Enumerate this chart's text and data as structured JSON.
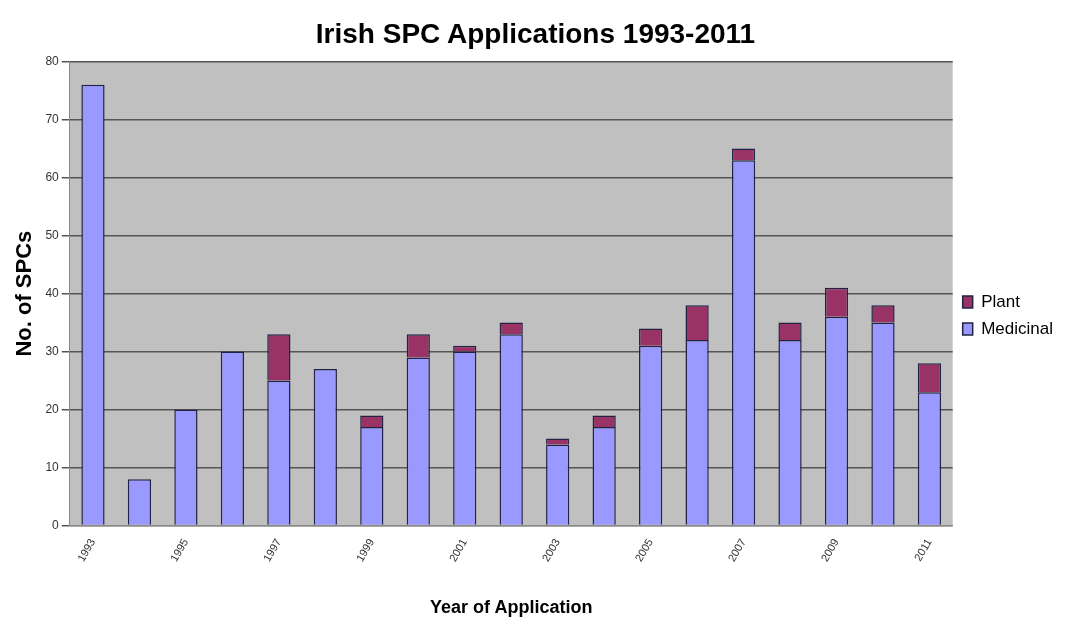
{
  "chart_data": {
    "type": "bar",
    "title": "Irish SPC Applications 1993-2011",
    "xlabel": "Year of Application",
    "ylabel": "No. of SPCs",
    "categories": [
      "1993",
      null,
      "1995",
      null,
      "1997",
      null,
      "1999",
      null,
      "2001",
      null,
      "2003",
      null,
      "2005",
      null,
      "2007",
      null,
      "2009",
      null,
      "2011"
    ],
    "stacked": true,
    "series": [
      {
        "name": "Medicinal",
        "color": "#9999ff",
        "values": [
          76,
          8,
          20,
          30,
          25,
          27,
          17,
          29,
          30,
          33,
          14,
          17,
          31,
          32,
          63,
          32,
          36,
          35,
          23
        ]
      },
      {
        "name": "Plant",
        "color": "#993366",
        "values": [
          0,
          0,
          0,
          0,
          8,
          0,
          2,
          4,
          1,
          2,
          1,
          2,
          3,
          6,
          2,
          3,
          5,
          3,
          5
        ]
      }
    ],
    "ylim": [
      0,
      80
    ],
    "yticks": [
      0,
      10,
      20,
      30,
      40,
      50,
      60,
      70,
      80
    ],
    "grid": "y",
    "legend": "right"
  }
}
